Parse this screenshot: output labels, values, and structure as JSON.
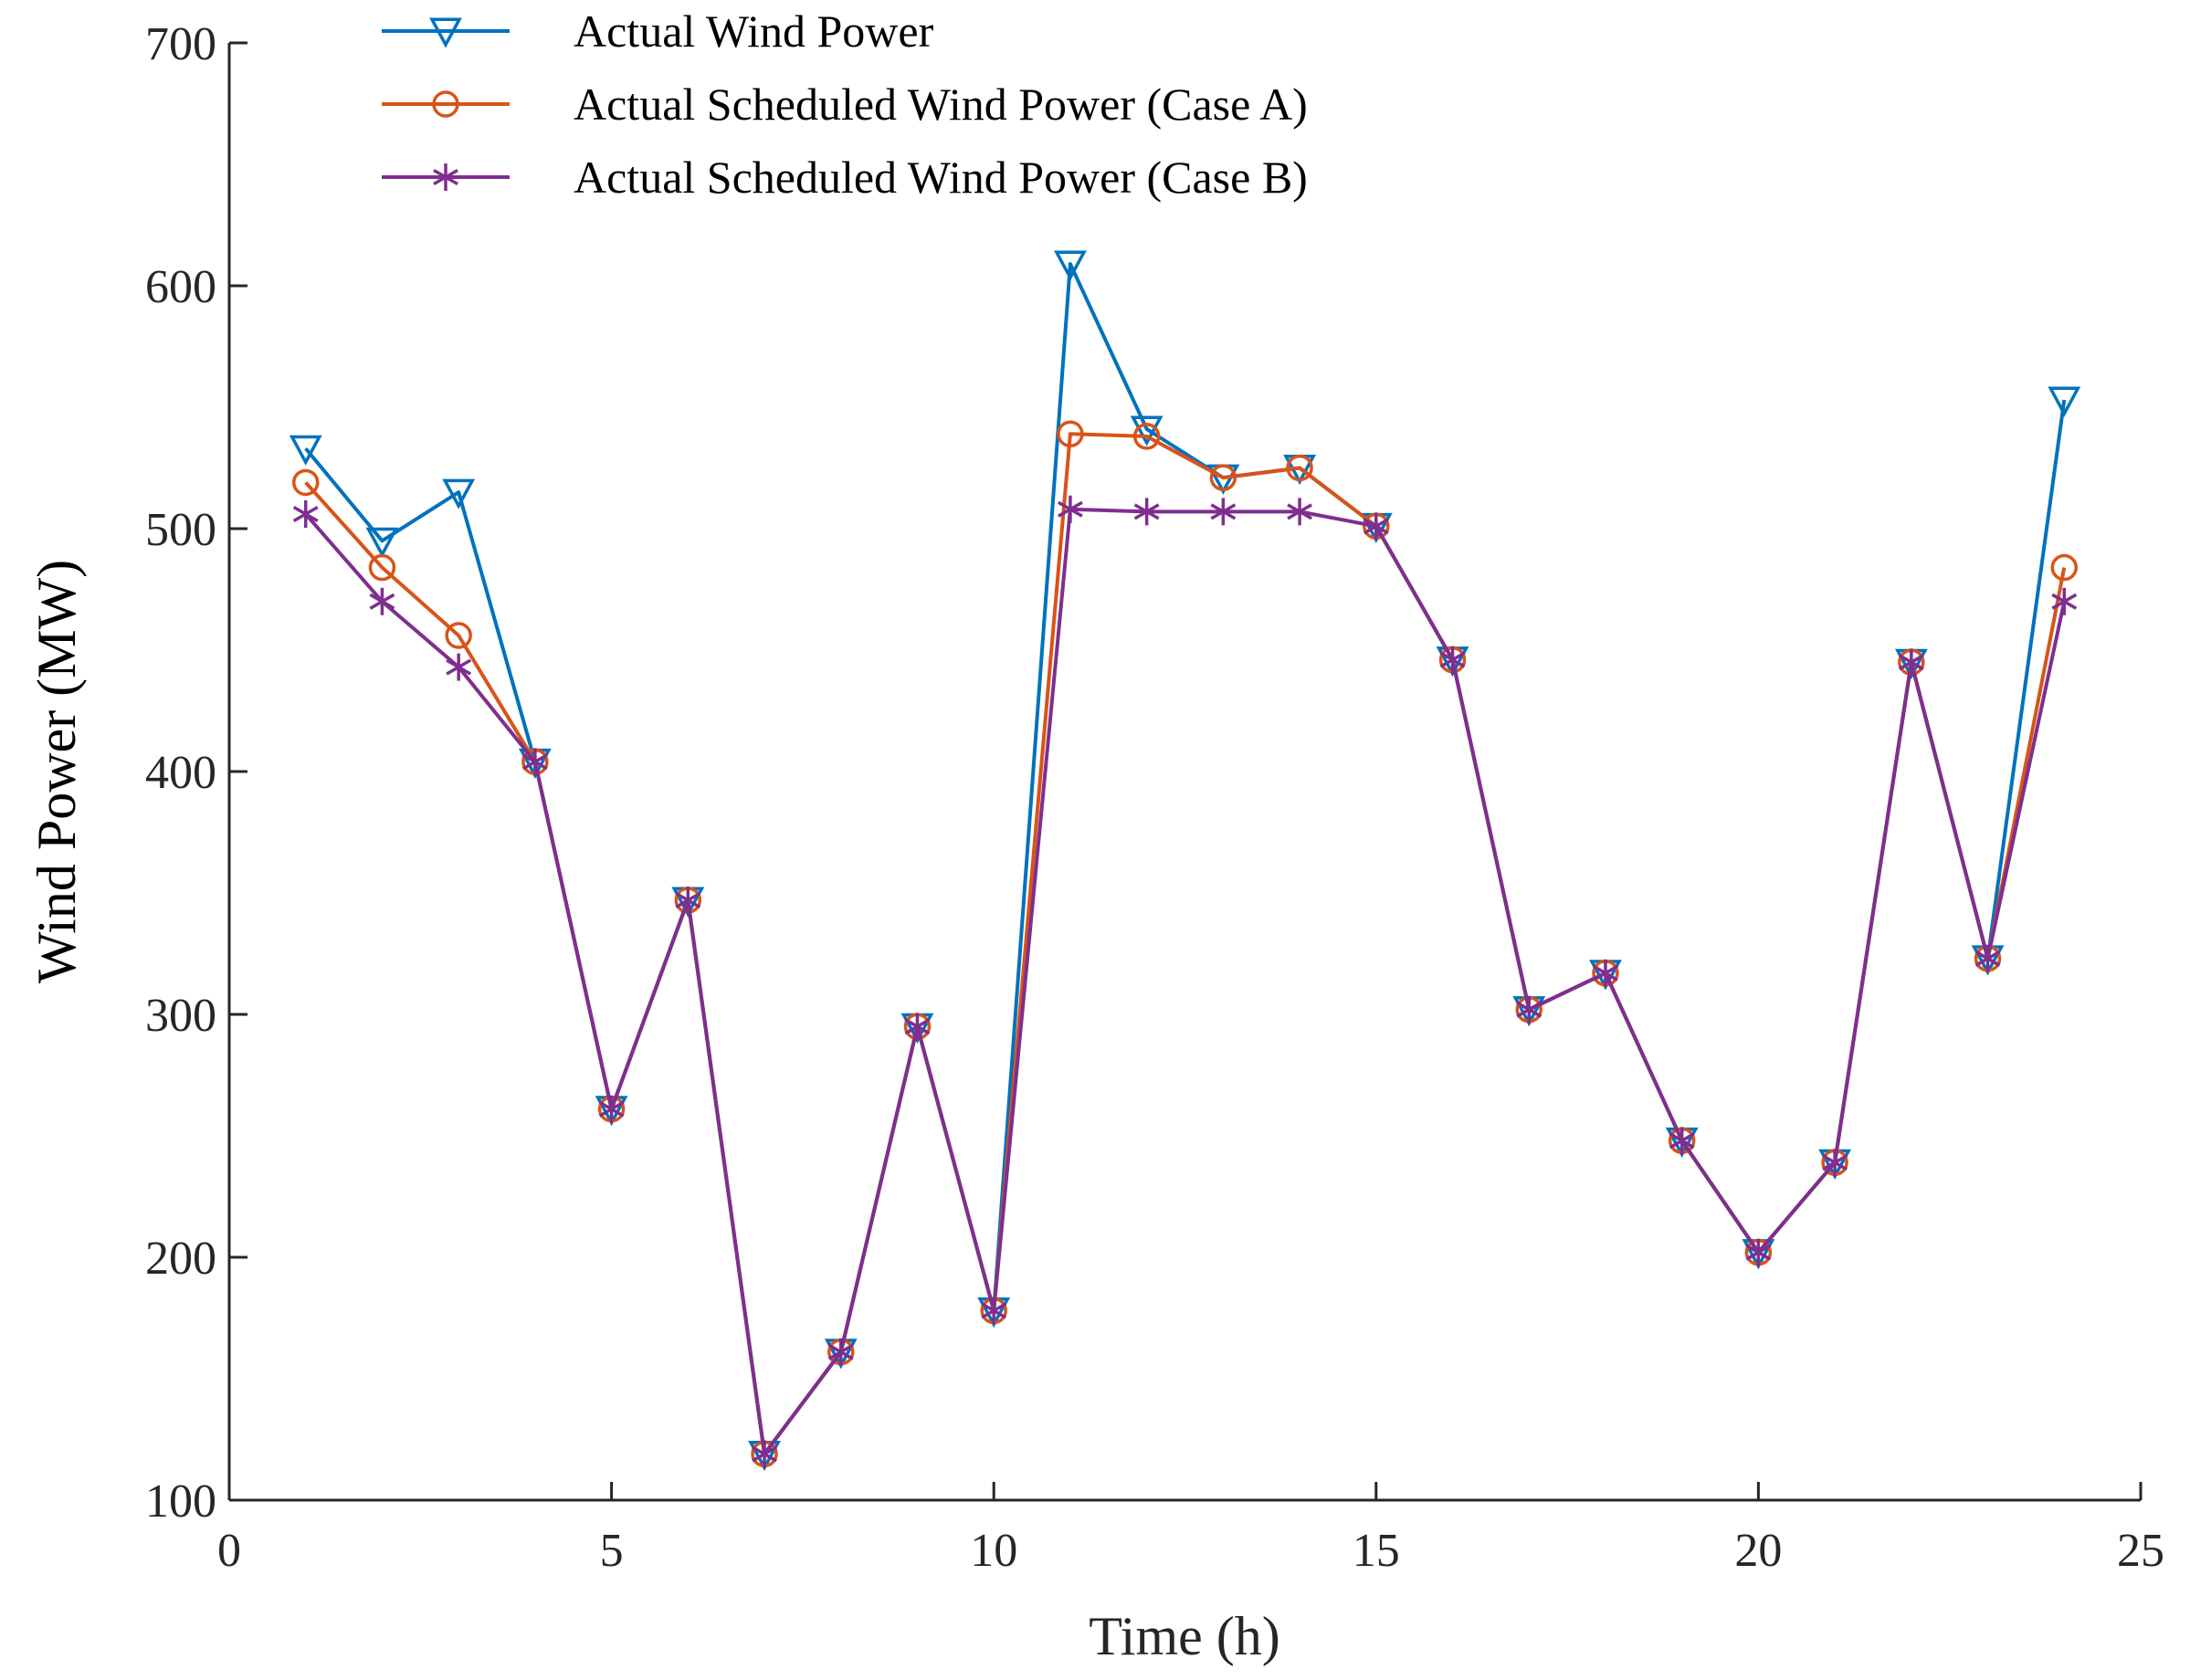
{
  "chart_data": {
    "type": "line",
    "title": "",
    "xlabel": "Time (h)",
    "ylabel": "Wind Power (MW)",
    "xlim": [
      0,
      25
    ],
    "ylim": [
      100,
      700
    ],
    "xticks": [
      0,
      5,
      10,
      15,
      20,
      25
    ],
    "yticks": [
      100,
      200,
      300,
      400,
      500,
      600,
      700
    ],
    "grid": false,
    "legend_position": "top-left",
    "x": [
      1,
      2,
      3,
      4,
      5,
      6,
      7,
      8,
      9,
      10,
      11,
      12,
      13,
      14,
      15,
      16,
      17,
      18,
      19,
      20,
      21,
      22,
      23,
      24
    ],
    "series": [
      {
        "name": "Actual Wind Power",
        "color": "#0072BD",
        "marker": "triangle-down",
        "values": [
          533,
          495,
          515,
          404,
          261,
          347,
          119,
          161,
          295,
          178,
          609,
          541,
          521,
          525,
          501,
          446,
          302,
          317,
          248,
          202,
          239,
          445,
          323,
          553
        ]
      },
      {
        "name": "Actual Scheduled Wind Power (Case A)",
        "color": "#D95319",
        "marker": "circle",
        "values": [
          519,
          484,
          456,
          404,
          261,
          347,
          119,
          161,
          295,
          178,
          539,
          538,
          521,
          525,
          501,
          446,
          302,
          317,
          248,
          202,
          239,
          445,
          323,
          484
        ]
      },
      {
        "name": "Actual Scheduled Wind Power (Case B)",
        "color": "#7E2F8E",
        "marker": "asterisk",
        "values": [
          506,
          470,
          443,
          404,
          261,
          347,
          119,
          161,
          295,
          178,
          508,
          507,
          507,
          507,
          501,
          446,
          302,
          317,
          248,
          202,
          239,
          445,
          323,
          470
        ]
      }
    ]
  }
}
